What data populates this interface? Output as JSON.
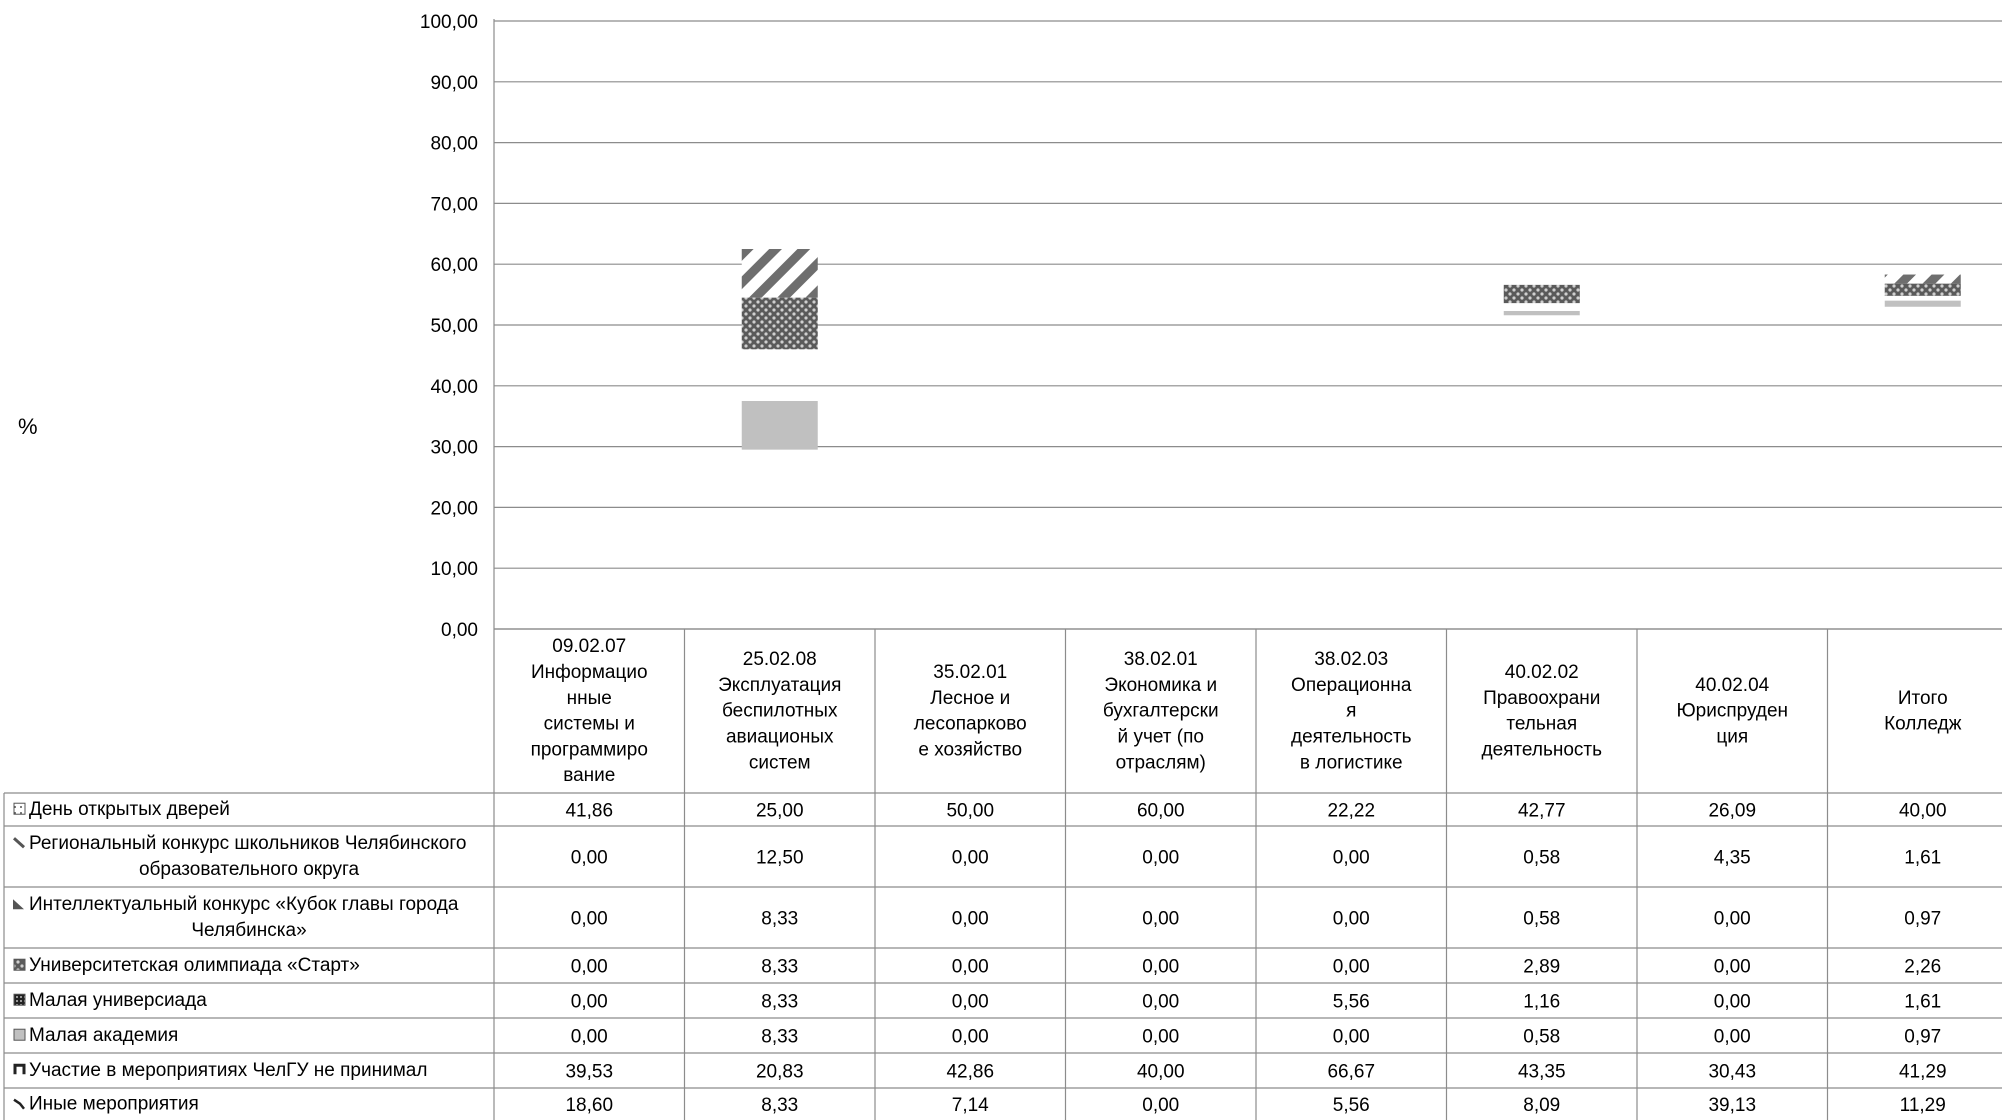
{
  "chart_data": {
    "type": "bar",
    "ylabel": "%",
    "ylim": [
      0,
      100
    ],
    "y_ticks": [
      "0,00",
      "10,00",
      "20,00",
      "30,00",
      "40,00",
      "50,00",
      "60,00",
      "70,00",
      "80,00",
      "90,00",
      "100,00"
    ],
    "categories": [
      [
        "09.02.07",
        "Информацио",
        "нные",
        "системы и",
        "программиро",
        "вание"
      ],
      [
        "25.02.08",
        "Эксплуатация",
        "беспилотных",
        "авиационых",
        "систем"
      ],
      [
        "35.02.01",
        "Лесное и",
        "лесопарково",
        "е хозяйство"
      ],
      [
        "38.02.01",
        "Экономика и",
        "бухгалтерски",
        "й учет (по",
        "отраслям)"
      ],
      [
        "38.02.03",
        "Операционна",
        "я",
        "деятельность",
        "в логистике"
      ],
      [
        "40.02.02",
        "Правоохрани",
        "тельная",
        "деятельность"
      ],
      [
        "40.02.04",
        "Юриспруден",
        "ция"
      ],
      [
        "Итого",
        "Колледж"
      ]
    ],
    "series": [
      {
        "name": [
          "День открытых дверей"
        ],
        "values": [
          "41,86",
          "25,00",
          "50,00",
          "60,00",
          "22,22",
          "42,77",
          "26,09",
          "40,00"
        ]
      },
      {
        "name": [
          "Региональный конкурс школьников Челябинского",
          "образовательного округа"
        ],
        "values": [
          "0,00",
          "12,50",
          "0,00",
          "0,00",
          "0,00",
          "0,58",
          "4,35",
          "1,61"
        ]
      },
      {
        "name": [
          "Интеллектуальный конкурс «Кубок главы города",
          "Челябинска»"
        ],
        "values": [
          "0,00",
          "8,33",
          "0,00",
          "0,00",
          "0,00",
          "0,58",
          "0,00",
          "0,97"
        ]
      },
      {
        "name": [
          "Университетская олимпиада «Старт»"
        ],
        "values": [
          "0,00",
          "8,33",
          "0,00",
          "0,00",
          "0,00",
          "2,89",
          "0,00",
          "2,26"
        ]
      },
      {
        "name": [
          "Малая универсиада"
        ],
        "values": [
          "0,00",
          "8,33",
          "0,00",
          "0,00",
          "5,56",
          "1,16",
          "0,00",
          "1,61"
        ]
      },
      {
        "name": [
          "Малая академия"
        ],
        "values": [
          "0,00",
          "8,33",
          "0,00",
          "0,00",
          "0,00",
          "0,58",
          "0,00",
          "0,97"
        ]
      },
      {
        "name": [
          "Участие в мероприятиях ЧелГУ не принимал"
        ],
        "values": [
          "39,53",
          "20,83",
          "42,86",
          "40,00",
          "66,67",
          "43,35",
          "30,43",
          "41,29"
        ]
      },
      {
        "name": [
          "Иные мероприятия"
        ],
        "values": [
          "18,60",
          "8,33",
          "7,14",
          "0,00",
          "5,56",
          "8,09",
          "39,13",
          "11,29"
        ]
      }
    ],
    "visible_marks": [
      {
        "category_index": 1,
        "series_index": 1,
        "low": 54.5,
        "high": 62.5
      },
      {
        "category_index": 1,
        "series_index": 3,
        "low": 46.0,
        "high": 54.5
      },
      {
        "category_index": 1,
        "series_index": 5,
        "low": 29.5,
        "high": 37.5
      },
      {
        "category_index": 5,
        "series_index": 3,
        "low": 53.6,
        "high": 56.6
      },
      {
        "category_index": 5,
        "series_index": 5,
        "low": 51.6,
        "high": 52.3
      },
      {
        "category_index": 7,
        "series_index": 1,
        "low": 56.8,
        "high": 58.3
      },
      {
        "category_index": 7,
        "series_index": 3,
        "low": 54.8,
        "high": 56.8
      },
      {
        "category_index": 7,
        "series_index": 5,
        "low": 53.0,
        "high": 54.0
      }
    ],
    "grid": true,
    "legend": "table-left"
  }
}
